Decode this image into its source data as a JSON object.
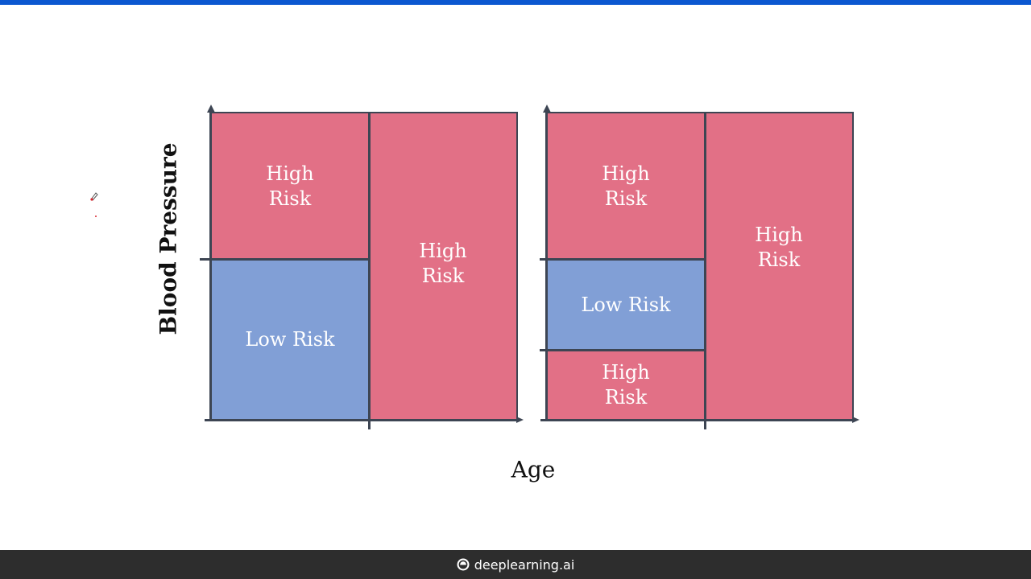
{
  "colors": {
    "high_risk": "#e27086",
    "low_risk": "#819fd6",
    "axis": "#3d4553",
    "top_bar": "#0b57d0",
    "footer_bg": "#2d2d2d"
  },
  "diagram": {
    "y_axis_label": "Blood Pressure",
    "x_axis_label": "Age",
    "left_panel": {
      "top_left": "High\nRisk",
      "bottom_left": "Low Risk",
      "right": "High\nRisk"
    },
    "right_panel": {
      "top_left": "High\nRisk",
      "middle_left": "Low Risk",
      "bottom_left": "High\nRisk",
      "right": "High\nRisk"
    }
  },
  "footer": {
    "brand": "deeplearning.ai",
    "logo_icon": "deeplearning-logo-icon"
  },
  "annotation": {
    "icon": "pen-cursor-icon"
  }
}
